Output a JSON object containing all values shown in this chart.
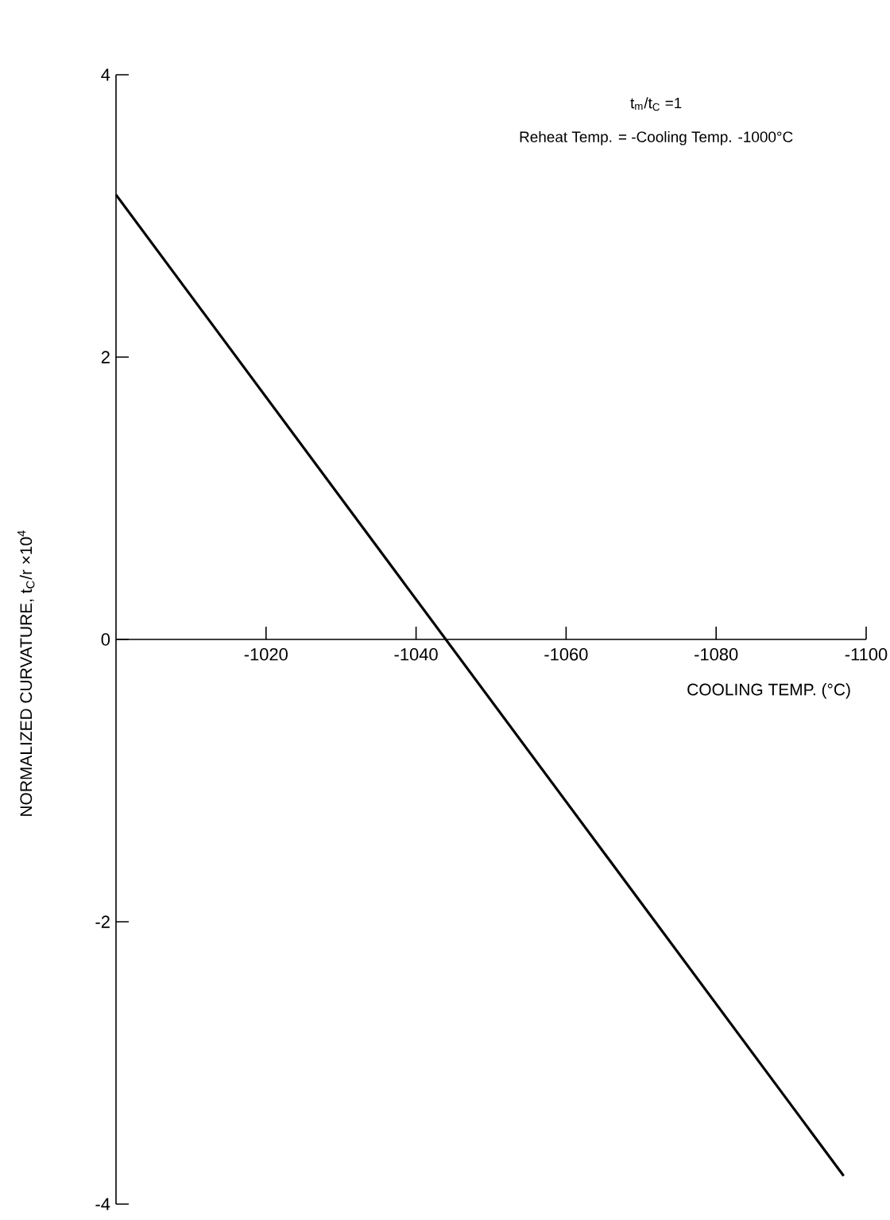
{
  "chart_data": {
    "type": "line",
    "xlabel": "COOLING TEMP. (°C)",
    "ylabel": "NORMALIZED CURVATURE, t$_{C}$/r ×10$^{4}$",
    "annotations": [
      "t$_{m}$/t$_{C}$ =1",
      "Reheat Temp. = -Cooling Temp. -1000°C"
    ],
    "series": [
      {
        "color": "#000000",
        "x": [
          -1000,
          -1097
        ],
        "values": [
          3.15,
          -3.8
        ]
      }
    ],
    "xlim": [
      -1000,
      -1100
    ],
    "ylim": [
      -4,
      4
    ],
    "xticks": [
      -1020,
      -1040,
      -1060,
      -1080,
      -1100
    ],
    "yticks": [
      -4,
      -2,
      0,
      2,
      4
    ],
    "marker": "none",
    "line_style": "solid"
  }
}
